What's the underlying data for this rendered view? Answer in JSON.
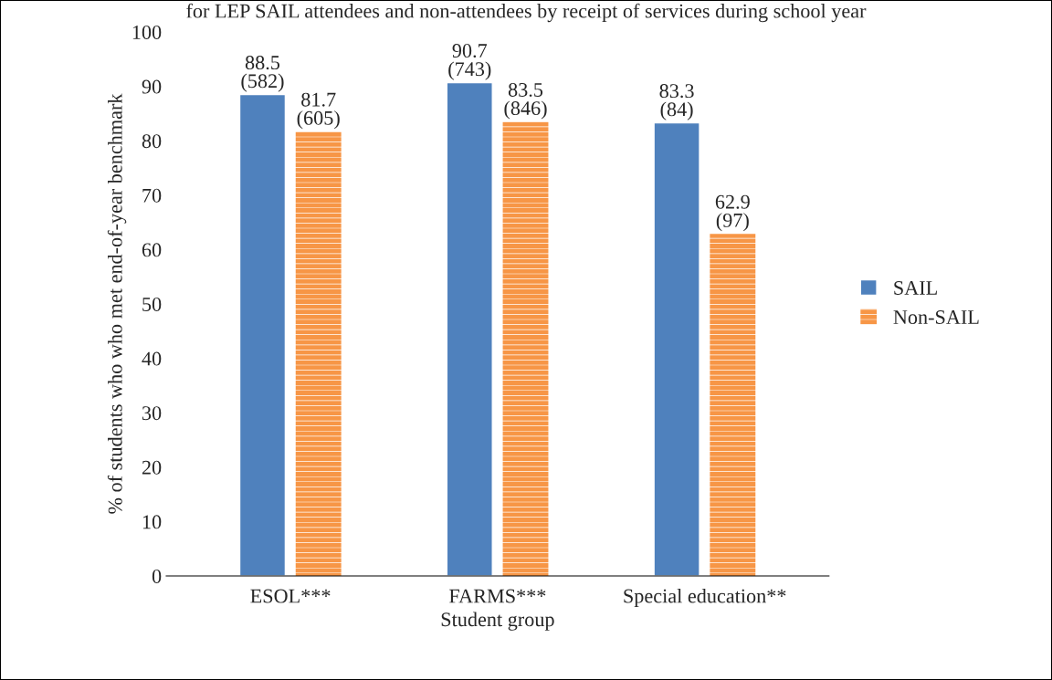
{
  "chart_data": {
    "type": "bar",
    "title": "for LEP SAIL attendees and non-attendees by receipt of services during school year",
    "categories": [
      "ESOL***",
      "FARMS***",
      "Special education**"
    ],
    "series": [
      {
        "name": "SAIL",
        "color": "#4f81bd",
        "values": [
          88.5,
          90.7,
          83.3
        ],
        "value_labels": [
          "88.5\n(582)",
          "90.7\n(743)",
          "83.3\n(84)"
        ]
      },
      {
        "name": "Non-SAIL",
        "color": "#f79646",
        "values": [
          81.7,
          83.5,
          62.9
        ],
        "value_labels": [
          "81.7\n(605)",
          "83.5\n(846)",
          "62.9\n(97)"
        ]
      }
    ],
    "xlabel": "Student group",
    "ylabel": "% of students who who met end-of-year benchmark",
    "ylim": [
      0,
      100
    ],
    "yticks": [
      0,
      10,
      20,
      30,
      40,
      50,
      60,
      70,
      80,
      90,
      100
    ],
    "grid": false,
    "legend": "right"
  }
}
